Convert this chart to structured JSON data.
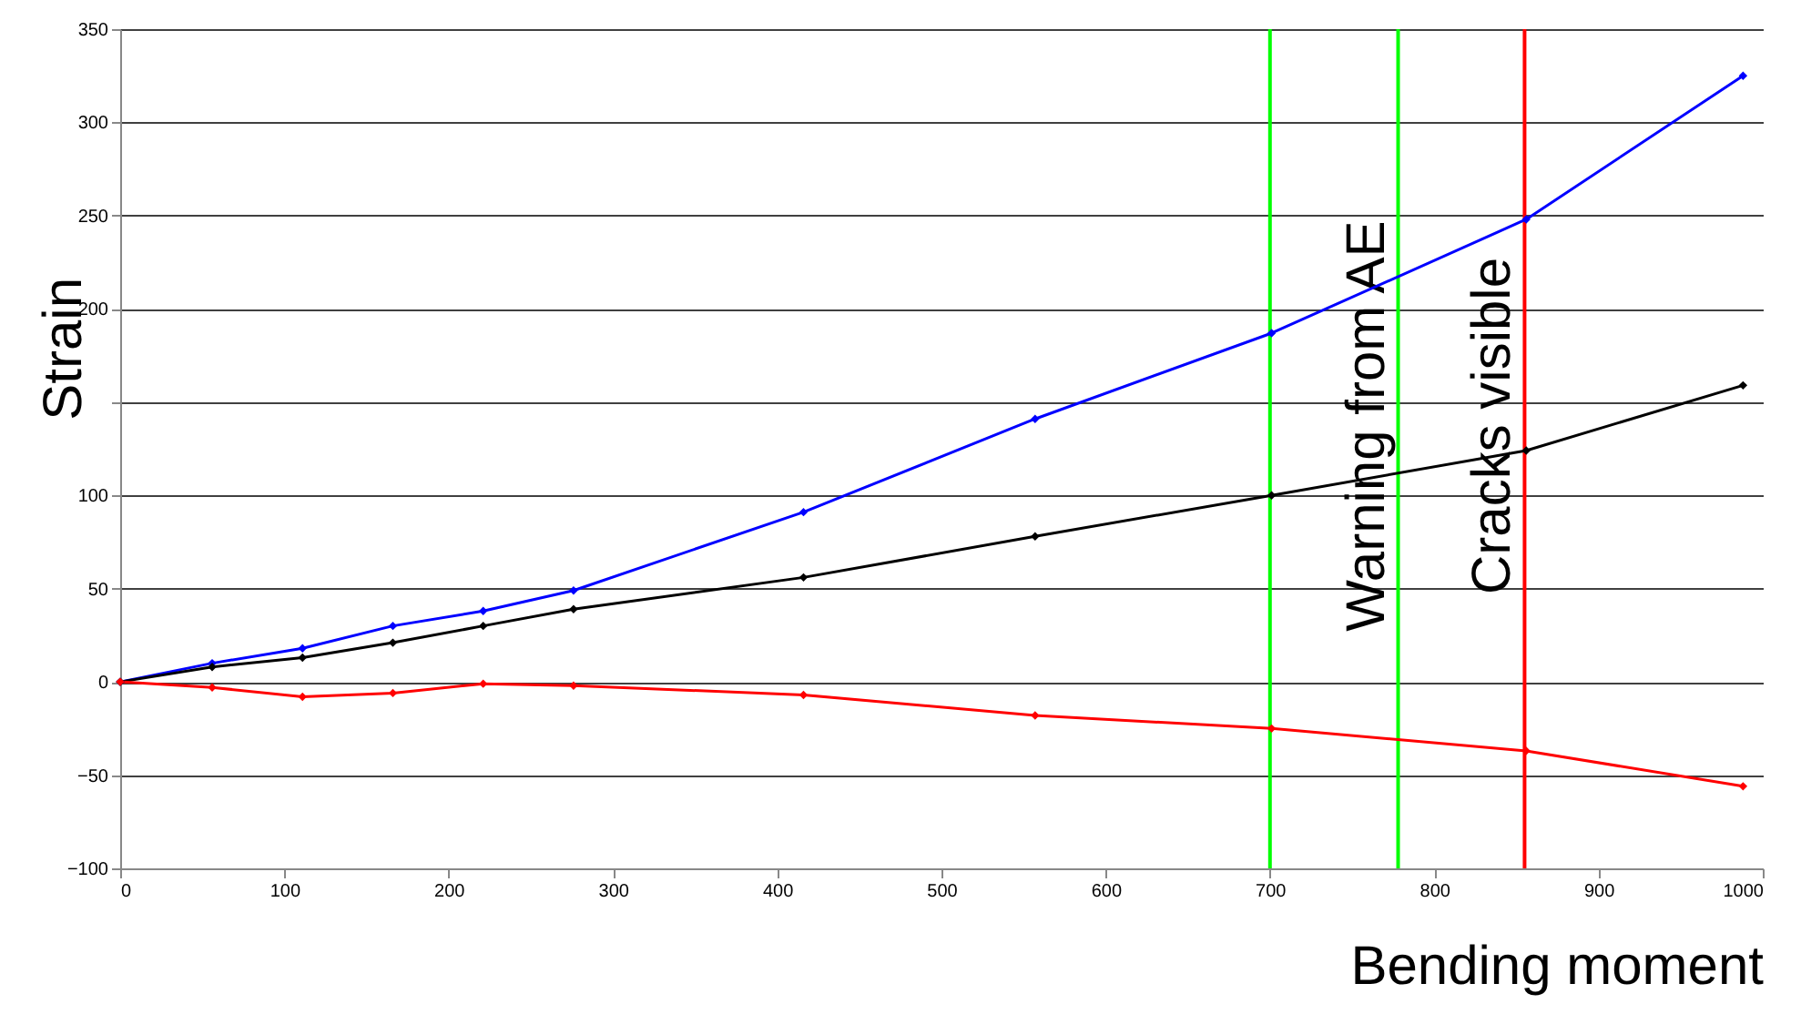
{
  "chart_data": {
    "type": "line",
    "xlabel": "Bending moment",
    "ylabel": "Strain",
    "x": [
      0,
      56,
      111,
      166,
      221,
      276,
      416,
      557,
      701,
      856,
      988
    ],
    "series": [
      {
        "color": "#0000ff",
        "values": [
          0,
          10,
          18,
          30,
          38,
          49,
          91,
          141,
          187,
          248,
          325
        ]
      },
      {
        "color": "#000000",
        "values": [
          0,
          8,
          13,
          21,
          30,
          39,
          56,
          78,
          100,
          124,
          159
        ]
      },
      {
        "color": "#ff0000",
        "values": [
          0,
          -3,
          -8,
          -6,
          -1,
          -2,
          -7,
          -18,
          -25,
          -37,
          -56
        ]
      }
    ],
    "xlim": [
      0,
      1000
    ],
    "xticks": [
      0,
      100,
      200,
      300,
      400,
      500,
      600,
      700,
      800,
      900,
      1000
    ],
    "ylim": [
      -100,
      350
    ],
    "yticks": [
      -100,
      -50,
      0,
      50,
      100,
      {
        "value": 150,
        "label": null
      },
      200,
      250,
      300,
      350
    ],
    "grid": "y",
    "marker": "diamond",
    "ref_lines": [
      {
        "axis": "x",
        "value": 700,
        "color": "#00ff00"
      },
      {
        "axis": "x",
        "value": 778,
        "color": "#00ff00",
        "label": "Warning from AE"
      },
      {
        "axis": "x",
        "value": 855,
        "color": "#ff0000",
        "label": "Cracks visible"
      }
    ]
  }
}
